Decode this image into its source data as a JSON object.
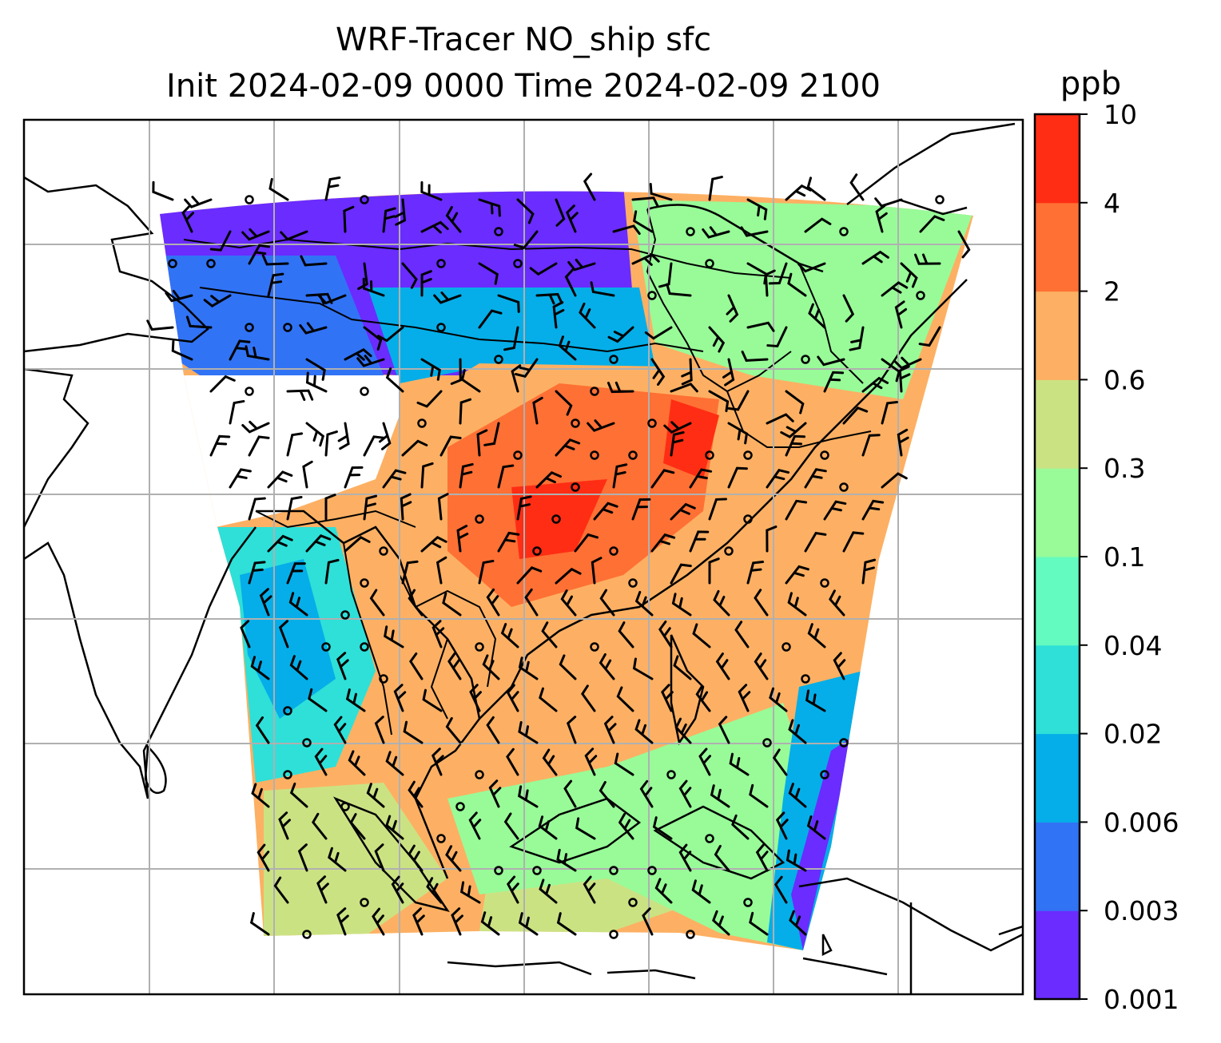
{
  "title": {
    "line1": "WRF-Tracer NO_ship sfc",
    "line2": "Init 2024-02-09 0000 Time 2024-02-09 2100"
  },
  "colorbar": {
    "unit": "ppb",
    "levels": [
      "0.001",
      "0.003",
      "0.006",
      "0.02",
      "0.04",
      "0.1",
      "0.3",
      "0.6",
      "2",
      "4",
      "10"
    ],
    "colors": [
      "#6a2cff",
      "#3173f5",
      "#05aee8",
      "#2ee0d8",
      "#63fbbf",
      "#98fb98",
      "#cbe283",
      "#fdb063",
      "#ff7034",
      "#ff2d14"
    ]
  },
  "map": {
    "gridlines": true,
    "field_colors": {
      "north": "#6a2cff",
      "northwest": "#3173f5",
      "mid_north": "#05aee8",
      "northeast": "#98fb98",
      "east_south": "#fdb063",
      "inland_core": "#ff7034",
      "hotspot": "#ff2d14",
      "south_sea": "#cbe283",
      "west_band": "#2ee0d8",
      "east_edge": "#3173f5"
    }
  }
}
